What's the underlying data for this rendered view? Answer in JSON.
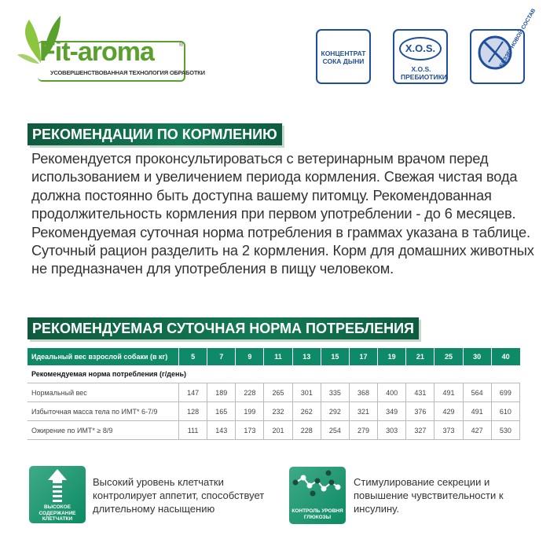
{
  "logo": {
    "name": "Fit-aroma",
    "registered": "®",
    "tagline": "УСОВЕРШЕНСТВОВАННАЯ ТЕХНОЛОГИЯ ОБРАБОТКИ"
  },
  "badges": [
    {
      "icon": "melon-juice-badge-icon",
      "label": "КОНЦЕНТРАТ СОКА ДЫНИ"
    },
    {
      "icon": "xos-badge-icon",
      "title": "X.O.S.",
      "label": "X.O.S. ПРЕБИОТИКИ"
    },
    {
      "icon": "grain-free-badge-icon",
      "label": "БЕЗЗЕРНОВОЙ СОСТАВ"
    }
  ],
  "feeding": {
    "title": "РЕКОМЕНДАЦИИ ПО КОРМЛЕНИЮ",
    "text": "Рекомендуется проконсультироваться с ветеринарным врачом перед использованием и увеличением периода кормления. Свежая чистая вода должна постоянно быть доступна вашему питомцу. Рекомендованная продолжительность кормления при первом употреблении - до 6 месяцев. Рекомендуемая суточная норма потребления в граммах указана в таблице. Суточный рацион разделить на 2 кормления. Корм для домашних животных не предназначен для употребления в пищу человеком."
  },
  "norm": {
    "title": "РЕКОМЕНДУЕМАЯ СУТОЧНАЯ НОРМА ПОТРЕБЛЕНИЯ",
    "header": "Идеальный вес взрослой собаки (в кг)",
    "weights": [
      "5",
      "7",
      "9",
      "11",
      "13",
      "15",
      "17",
      "19",
      "21",
      "25",
      "30",
      "40"
    ],
    "subheader": "Рекомендуемая норма потребления (г/день)",
    "rows": [
      {
        "label": "Нормальный вес",
        "values": [
          "147",
          "189",
          "228",
          "265",
          "301",
          "335",
          "368",
          "400",
          "431",
          "491",
          "564",
          "699"
        ]
      },
      {
        "label": "Избыточная масса тела по ИМТ* 6-7/9",
        "values": [
          "128",
          "165",
          "199",
          "232",
          "262",
          "292",
          "321",
          "349",
          "376",
          "429",
          "491",
          "610"
        ]
      },
      {
        "label": "Ожирение по ИМТ* ≥ 8/9",
        "values": [
          "111",
          "143",
          "173",
          "201",
          "228",
          "254",
          "279",
          "303",
          "327",
          "373",
          "427",
          "530"
        ]
      }
    ]
  },
  "features": [
    {
      "icon_label": "ВЫСОКОЕ СОДЕРЖАНИЕ КЛЕТЧАТКИ",
      "text": "Высокий уровень клетчатки контролирует аппетит, способствует длительному насыщению"
    },
    {
      "icon_label": "КОНТРОЛЬ УРОВНЯ ГЛЮКОЗЫ",
      "text": "Стимулирование секреции и повышение чувствительности к инсулину."
    }
  ],
  "colors": {
    "brand_green": "#5aa02c",
    "banner": "#137a55",
    "table_header": "#0e8a68",
    "badge_blue": "#1f4e9c"
  }
}
